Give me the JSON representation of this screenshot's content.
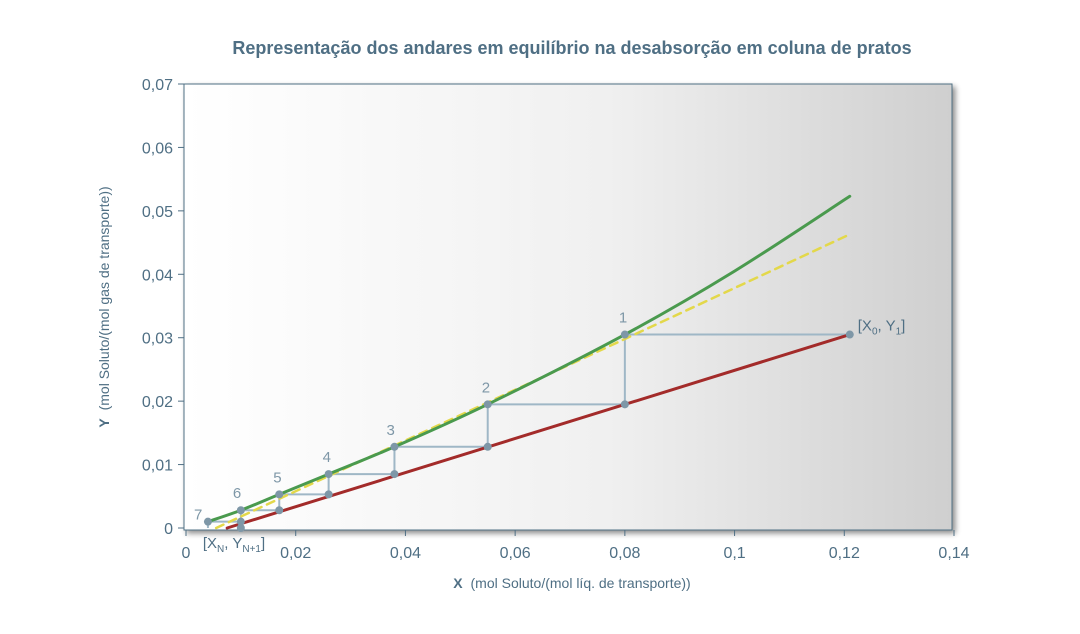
{
  "chart_data": {
    "type": "line",
    "title": "Representação dos andares em equilíbrio na desabsorção em coluna de pratos",
    "xlabel_var": "X",
    "xlabel_unit": "(mol Soluto/(mol líq. de transporte))",
    "ylabel_var": "Y",
    "ylabel_unit": "(mol Soluto/(mol gas de transporte))",
    "xlim": [
      0,
      0.14
    ],
    "ylim": [
      0,
      0.07
    ],
    "x_ticks": [
      {
        "v": 0,
        "label": "0"
      },
      {
        "v": 0.02,
        "label": "0,02"
      },
      {
        "v": 0.04,
        "label": "0,04"
      },
      {
        "v": 0.06,
        "label": "0,06"
      },
      {
        "v": 0.08,
        "label": "0,08"
      },
      {
        "v": 0.1,
        "label": "0,1"
      },
      {
        "v": 0.12,
        "label": "0,12"
      },
      {
        "v": 0.14,
        "label": "0,14"
      }
    ],
    "y_ticks": [
      {
        "v": 0,
        "label": "0"
      },
      {
        "v": 0.01,
        "label": "0,01"
      },
      {
        "v": 0.02,
        "label": "0,02"
      },
      {
        "v": 0.03,
        "label": "0,03"
      },
      {
        "v": 0.04,
        "label": "0,04"
      },
      {
        "v": 0.05,
        "label": "0,05"
      },
      {
        "v": 0.06,
        "label": "0,06"
      },
      {
        "v": 0.07,
        "label": "0,07"
      }
    ],
    "grid": false,
    "series": [
      {
        "key": "equilibrium",
        "color": "#4a9a4e",
        "dashed": false,
        "x": [
          0.004,
          0.01,
          0.017,
          0.026,
          0.038,
          0.055,
          0.08,
          0.1,
          0.121
        ],
        "y": [
          0.001,
          0.0028,
          0.0053,
          0.0085,
          0.0128,
          0.0195,
          0.0305,
          0.0405,
          0.0523
        ]
      },
      {
        "key": "tangent",
        "color": "#e3d84a",
        "dashed": true,
        "x": [
          0.0055,
          0.08,
          0.121
        ],
        "y": [
          0.0,
          0.0298,
          0.0463
        ]
      },
      {
        "key": "operating",
        "color": "#a32b2a",
        "dashed": false,
        "x": [
          0.0075,
          0.121
        ],
        "y": [
          0.0,
          0.0305
        ]
      }
    ],
    "staircase": {
      "color": "#9fb7c6",
      "stages": [
        {
          "label": "1",
          "x_eq": 0.08,
          "y": 0.0305,
          "x_op": 0.121,
          "y_next": 0.0195
        },
        {
          "label": "2",
          "x_eq": 0.055,
          "y": 0.0195,
          "x_op": 0.08,
          "y_next": 0.0128
        },
        {
          "label": "3",
          "x_eq": 0.038,
          "y": 0.0128,
          "x_op": 0.055,
          "y_next": 0.0085
        },
        {
          "label": "4",
          "x_eq": 0.026,
          "y": 0.0085,
          "x_op": 0.038,
          "y_next": 0.0053
        },
        {
          "label": "5",
          "x_eq": 0.017,
          "y": 0.0053,
          "x_op": 0.026,
          "y_next": 0.0028
        },
        {
          "label": "6",
          "x_eq": 0.01,
          "y": 0.0028,
          "x_op": 0.017,
          "y_next": 0.001
        },
        {
          "label": "7",
          "x_eq": 0.004,
          "y": 0.001,
          "x_op": 0.01,
          "y_next": 0.0
        }
      ]
    },
    "endpoints": [
      {
        "key": "top",
        "label_main": "[X",
        "sub1": "0",
        "label_mid": ", Y",
        "sub2": "1",
        "label_end": "]",
        "x": 0.121,
        "y": 0.0305
      },
      {
        "key": "bottom",
        "label_main": "[X",
        "sub1": "N",
        "label_mid": ", Y",
        "sub2": "N+1",
        "label_end": "]",
        "x": 0.01,
        "y": 0.0
      }
    ]
  }
}
